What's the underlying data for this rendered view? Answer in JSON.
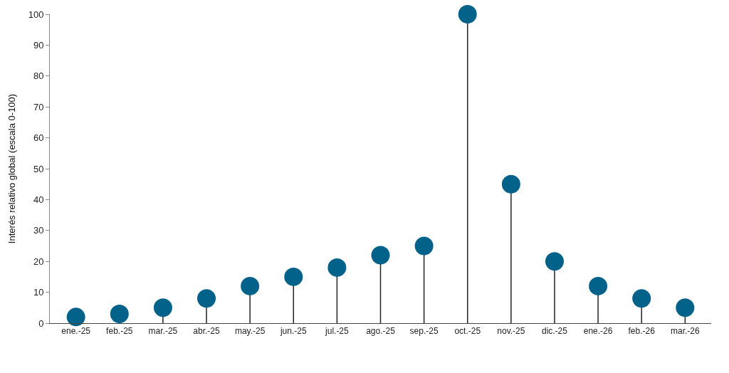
{
  "chart_data": {
    "type": "lollipop",
    "ylabel": "Interés relativo global (escala 0-100)",
    "categories": [
      "ene.-25",
      "feb.-25",
      "mar.-25",
      "abr.-25",
      "may.-25",
      "jun.-25",
      "jul.-25",
      "ago.-25",
      "sep.-25",
      "oct.-25",
      "nov.-25",
      "dic.-25",
      "ene.-26",
      "feb.-26",
      "mar.-26"
    ],
    "values": [
      2,
      3,
      5,
      8,
      12,
      15,
      18,
      22,
      25,
      100,
      45,
      20,
      12,
      8,
      5
    ],
    "color": "#03628a",
    "ylim": [
      0,
      100
    ],
    "yticks": [
      0,
      10,
      20,
      30,
      40,
      50,
      60,
      70,
      80,
      90,
      100
    ],
    "marker": "circle"
  }
}
